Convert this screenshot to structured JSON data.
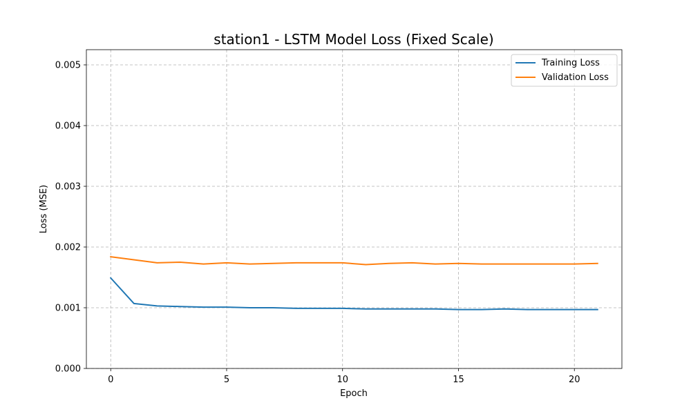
{
  "chart_data": {
    "type": "line",
    "title": "station1 - LSTM Model Loss (Fixed Scale)",
    "xlabel": "Epoch",
    "ylabel": "Loss (MSE)",
    "xlim": [
      -1.05,
      22.05
    ],
    "ylim": [
      0,
      0.00525
    ],
    "x_ticks": [
      0,
      5,
      10,
      15,
      20
    ],
    "y_ticks": [
      0.0,
      0.001,
      0.002,
      0.003,
      0.004,
      0.005
    ],
    "y_tick_labels": [
      "0.000",
      "0.001",
      "0.002",
      "0.003",
      "0.004",
      "0.005"
    ],
    "grid": true,
    "legend_position": "top-right",
    "x": [
      0,
      1,
      2,
      3,
      4,
      5,
      6,
      7,
      8,
      9,
      10,
      11,
      12,
      13,
      14,
      15,
      16,
      17,
      18,
      19,
      20,
      21
    ],
    "series": [
      {
        "name": "Training Loss",
        "color": "#1f77b4",
        "values": [
          0.00149,
          0.00107,
          0.00103,
          0.00102,
          0.00101,
          0.00101,
          0.001,
          0.001,
          0.00099,
          0.00099,
          0.00099,
          0.00098,
          0.00098,
          0.00098,
          0.00098,
          0.00097,
          0.00097,
          0.00098,
          0.00097,
          0.00097,
          0.00097,
          0.00097
        ]
      },
      {
        "name": "Validation Loss",
        "color": "#ff7f0e",
        "values": [
          0.00184,
          0.00179,
          0.00174,
          0.00175,
          0.00172,
          0.00174,
          0.00172,
          0.00173,
          0.00174,
          0.00174,
          0.00174,
          0.00171,
          0.00173,
          0.00174,
          0.00172,
          0.00173,
          0.00172,
          0.00172,
          0.00172,
          0.00172,
          0.00172,
          0.00173
        ]
      }
    ]
  }
}
